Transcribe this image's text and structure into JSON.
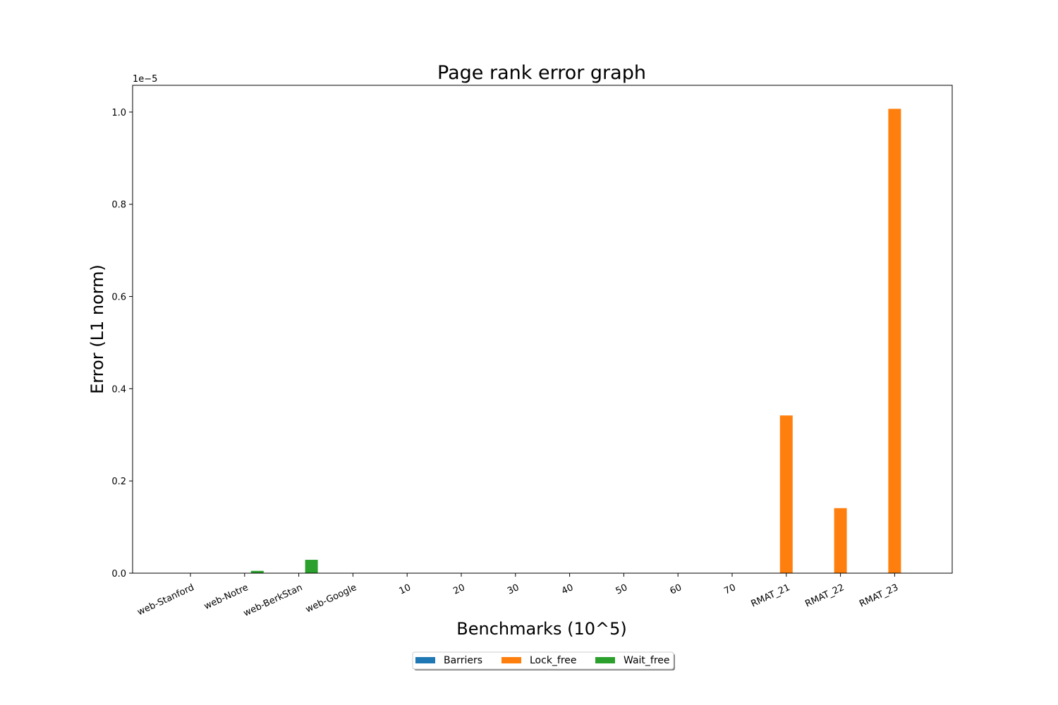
{
  "chart_data": {
    "type": "bar",
    "title": "Page rank error graph",
    "xlabel": "Benchmarks (10^5)",
    "ylabel": "Error (L1 norm)",
    "y_multiplier_label": "1e−5",
    "ylim": [
      0,
      1.058
    ],
    "yticks": [
      "0.0",
      "0.2",
      "0.4",
      "0.6",
      "0.8",
      "1.0"
    ],
    "categories": [
      "web-Stanford",
      "web-Notre",
      "web-BerkStan",
      "web-Google",
      "10",
      "20",
      "30",
      "40",
      "50",
      "60",
      "70",
      "RMAT_21",
      "RMAT_22",
      "RMAT_23"
    ],
    "series": [
      {
        "name": "Barriers",
        "color": "#1f77b4",
        "values": [
          0,
          0,
          0,
          0,
          0,
          0,
          0,
          0,
          0,
          0,
          0,
          0,
          0,
          0
        ]
      },
      {
        "name": "Lock_free",
        "color": "#ff7f0e",
        "values": [
          0,
          0,
          0,
          0,
          0,
          0,
          0,
          0,
          0,
          0,
          0,
          0.342,
          0.141,
          1.007
        ]
      },
      {
        "name": "Wait_free",
        "color": "#2ca02c",
        "values": [
          0,
          0.005,
          0.029,
          0,
          0,
          0,
          0,
          0,
          0,
          0,
          0,
          0,
          0,
          0
        ]
      }
    ],
    "legend": "bottom-center",
    "grid": false
  }
}
